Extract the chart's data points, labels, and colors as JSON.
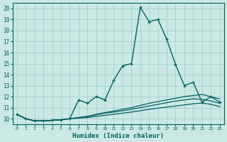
{
  "xlabel": "Humidex (Indice chaleur)",
  "bg_color": "#cce8e4",
  "grid_color": "#99cccc",
  "line_color": "#006060",
  "xlim": [
    -0.5,
    23.5
  ],
  "ylim": [
    9.5,
    20.5
  ],
  "yticks": [
    10,
    11,
    12,
    13,
    14,
    15,
    16,
    17,
    18,
    19,
    20
  ],
  "xticks": [
    0,
    1,
    2,
    3,
    4,
    5,
    6,
    7,
    8,
    9,
    10,
    11,
    12,
    13,
    14,
    15,
    16,
    17,
    18,
    19,
    20,
    21,
    22,
    23
  ],
  "series": [
    {
      "x": [
        0,
        1,
        2,
        3,
        4,
        5,
        6,
        7,
        8,
        9,
        10,
        11,
        12,
        13,
        14,
        15,
        16,
        17,
        18,
        19,
        20,
        21,
        22,
        23
      ],
      "y": [
        10.4,
        10.0,
        9.8,
        9.8,
        9.85,
        9.9,
        10.0,
        11.7,
        11.4,
        12.0,
        11.7,
        13.5,
        14.8,
        15.0,
        20.1,
        18.8,
        19.0,
        17.2,
        14.9,
        13.0,
        13.3,
        11.5,
        12.0,
        11.5
      ],
      "marker": "+",
      "lw": 1.0
    },
    {
      "x": [
        0,
        1,
        2,
        3,
        4,
        5,
        6,
        7,
        8,
        9,
        10,
        11,
        12,
        13,
        14,
        15,
        16,
        17,
        18,
        19,
        20,
        21,
        22,
        23
      ],
      "y": [
        10.4,
        10.0,
        9.8,
        9.8,
        9.85,
        9.9,
        10.0,
        10.1,
        10.2,
        10.4,
        10.55,
        10.7,
        10.85,
        11.0,
        11.2,
        11.4,
        11.55,
        11.7,
        11.85,
        12.0,
        12.1,
        12.2,
        12.0,
        11.8
      ],
      "marker": null,
      "lw": 0.9
    },
    {
      "x": [
        0,
        1,
        2,
        3,
        4,
        5,
        6,
        7,
        8,
        9,
        10,
        11,
        12,
        13,
        14,
        15,
        16,
        17,
        18,
        19,
        20,
        21,
        22,
        23
      ],
      "y": [
        10.4,
        10.0,
        9.8,
        9.8,
        9.85,
        9.9,
        10.0,
        10.1,
        10.2,
        10.35,
        10.5,
        10.6,
        10.72,
        10.85,
        11.0,
        11.15,
        11.3,
        11.45,
        11.6,
        11.7,
        11.8,
        11.75,
        11.6,
        11.4
      ],
      "marker": null,
      "lw": 0.9
    },
    {
      "x": [
        0,
        1,
        2,
        3,
        4,
        5,
        6,
        7,
        8,
        9,
        10,
        11,
        12,
        13,
        14,
        15,
        16,
        17,
        18,
        19,
        20,
        21,
        22,
        23
      ],
      "y": [
        10.4,
        10.0,
        9.8,
        9.8,
        9.85,
        9.9,
        10.0,
        10.05,
        10.1,
        10.2,
        10.3,
        10.4,
        10.5,
        10.6,
        10.72,
        10.85,
        10.95,
        11.05,
        11.15,
        11.25,
        11.35,
        11.42,
        11.3,
        11.1
      ],
      "marker": null,
      "lw": 0.9
    }
  ]
}
